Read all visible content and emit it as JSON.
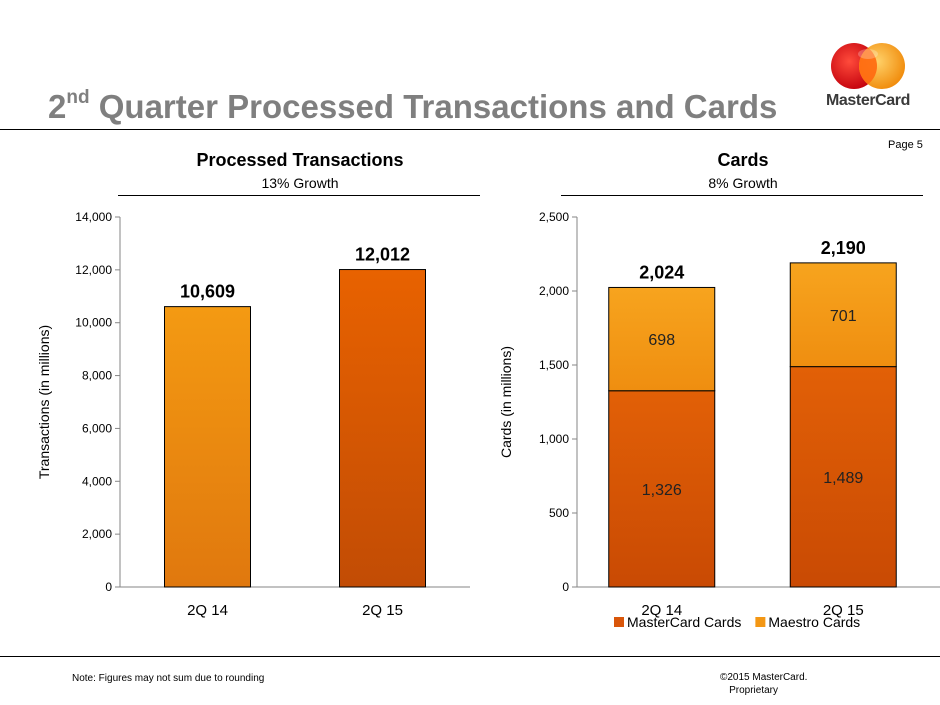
{
  "slide": {
    "title_main": "2",
    "title_sup": "nd",
    "title_rest": " Quarter Processed Transactions and Cards",
    "page": "Page 5",
    "brand": "MasterCard",
    "note": "Note: Figures may not sum due to rounding",
    "copyright_1": "©2015 MasterCard.",
    "copyright_2": "Proprietary"
  },
  "colors": {
    "mastercard_red": "#eb001b",
    "mastercard_yellow": "#f79e1b",
    "mastercard_overlap": "#ff5f00",
    "bar_orange_top": "#f49a12",
    "bar_orange_bottom": "#e0780e",
    "bar_red_top": "#e86200",
    "bar_red_bottom": "#c24c05",
    "title_gray": "#7f7f7f"
  },
  "panels": {
    "transactions": {
      "title": "Processed Transactions",
      "subtitle": "13% Growth"
    },
    "cards": {
      "title": "Cards",
      "subtitle": "8% Growth"
    }
  },
  "chart_data": [
    {
      "type": "bar",
      "categories": [
        "2Q 14",
        "2Q 15"
      ],
      "values": [
        10609,
        12012
      ],
      "value_labels": [
        "10,609",
        "12,012"
      ],
      "ylabel": "Transactions (in millions)",
      "ylim": [
        0,
        14000
      ],
      "yticks": [
        0,
        2000,
        4000,
        6000,
        8000,
        10000,
        12000,
        14000
      ],
      "ytick_labels": [
        "0",
        "2,000",
        "4,000",
        "6,000",
        "8,000",
        "10,000",
        "12,000",
        "14,000"
      ],
      "grid": false,
      "legend": "none"
    },
    {
      "type": "bar",
      "stacked": true,
      "categories": [
        "2Q 14",
        "2Q 15"
      ],
      "series": [
        {
          "name": "MasterCard Cards",
          "values": [
            1326,
            1489
          ],
          "labels": [
            "1,326",
            "1,489"
          ],
          "color": "#d9560a"
        },
        {
          "name": "Maestro Cards",
          "values": [
            698,
            701
          ],
          "labels": [
            "698",
            "701"
          ],
          "color": "#f39714"
        }
      ],
      "totals": [
        2024,
        2190
      ],
      "total_labels": [
        "2,024",
        "2,190"
      ],
      "ylabel": "Cards (in millions)",
      "ylim": [
        0,
        2500
      ],
      "yticks": [
        0,
        500,
        1000,
        1500,
        2000,
        2500
      ],
      "ytick_labels": [
        "0",
        "500",
        "1,000",
        "1,500",
        "2,000",
        "2,500"
      ],
      "grid": false,
      "legend": "bottom"
    }
  ]
}
